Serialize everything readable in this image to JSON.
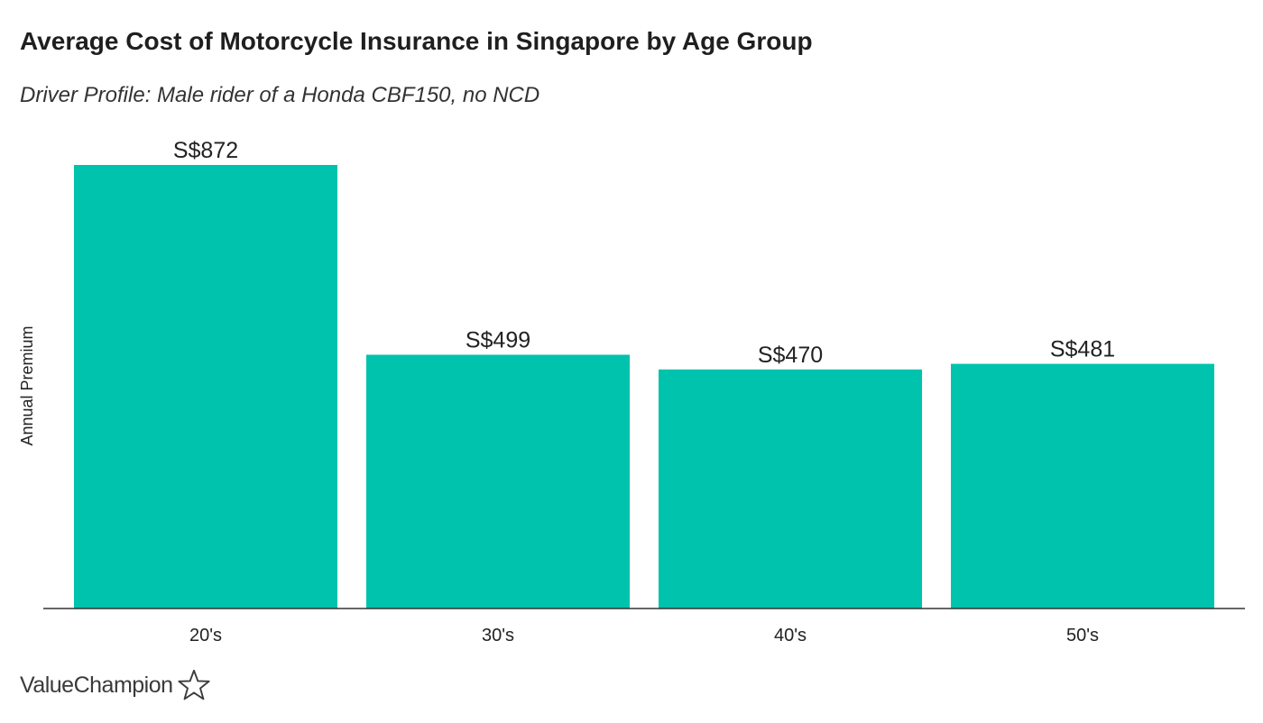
{
  "chart_data": {
    "type": "bar",
    "title": "Average Cost of Motorcycle Insurance in Singapore by Age Group",
    "subtitle": "Driver Profile: Male rider of a Honda CBF150, no NCD",
    "xlabel": "",
    "ylabel": "Annual Premium",
    "categories": [
      "20's",
      "30's",
      "40's",
      "50's"
    ],
    "values": [
      872,
      499,
      470,
      481
    ],
    "value_labels": [
      "S$872",
      "S$499",
      "S$470",
      "S$481"
    ],
    "ylim": [
      0,
      900
    ],
    "grid": false,
    "bar_color": "#00C3AD",
    "axis_color": "#333333"
  },
  "brand": {
    "name": "ValueChampion",
    "icon": "star-outline-icon"
  }
}
